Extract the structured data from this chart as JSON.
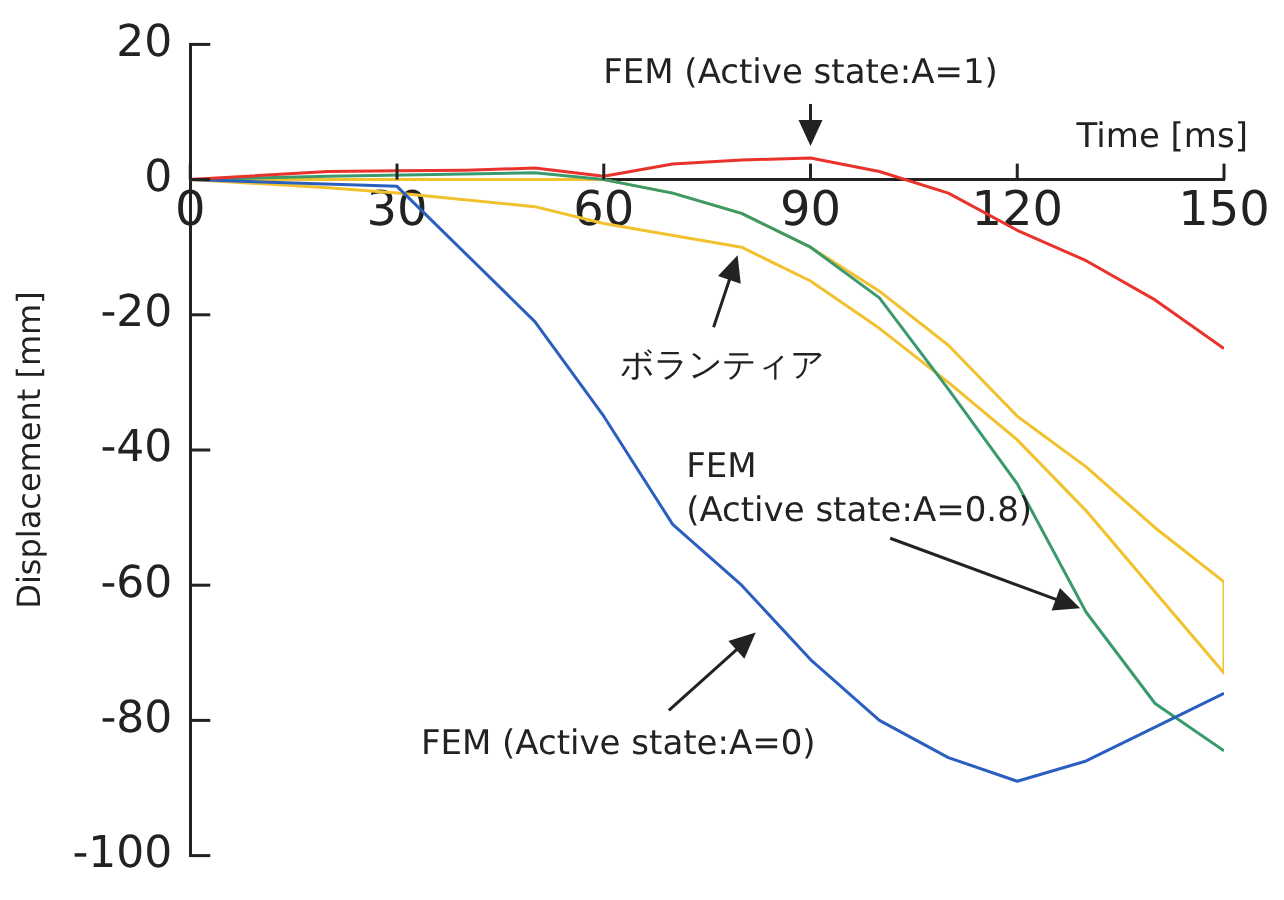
{
  "chart_data": {
    "type": "line",
    "xlabel": "Time [ms]",
    "ylabel": "Displacement [mm]",
    "xlim": [
      0,
      150
    ],
    "xticks": [
      0,
      30,
      60,
      90,
      120,
      150
    ],
    "ylim": [
      -100,
      20
    ],
    "yticks": [
      20,
      0,
      -20,
      -40,
      -60,
      -80,
      -100
    ],
    "grid": false,
    "legend": false,
    "marker": "none",
    "line_style": "solid",
    "series": [
      {
        "color": "#e8322a",
        "x": [
          0,
          20,
          30,
          40,
          50,
          60,
          70,
          80,
          90,
          100,
          110,
          120,
          130,
          140,
          150
        ],
        "values": [
          0,
          1.2,
          1.3,
          1.4,
          1.7,
          0.5,
          2.3,
          2.9,
          3.2,
          1.2,
          -2,
          -7.5,
          -12,
          -17.8,
          -25
        ]
      },
      {
        "color": "#2a5fbf",
        "x": [
          0,
          30,
          50,
          60,
          70,
          80,
          90,
          100,
          110,
          120,
          130,
          140,
          150
        ],
        "values": [
          0,
          -1,
          -21,
          -35,
          -51,
          -60,
          -71,
          -80,
          -85.5,
          -89,
          -86,
          -81,
          -76
        ]
      },
      {
        "color": "#3a9a6e",
        "x": [
          0,
          20,
          50,
          60,
          70,
          80,
          90,
          100,
          110,
          120,
          130,
          140,
          150
        ],
        "values": [
          0,
          0.5,
          1,
          0,
          -2,
          -5,
          -10,
          -17.5,
          -31,
          -45,
          -64,
          -77.5,
          -84.5
        ]
      },
      {
        "color": "#f2c12e",
        "x": [
          0,
          60,
          70,
          80,
          90,
          100,
          110,
          120,
          130,
          140,
          150,
          150
        ],
        "values": [
          0,
          0,
          -2,
          -5,
          -10,
          -16.5,
          -24.5,
          -35,
          -42.5,
          -51.5,
          -59.5,
          -73
        ]
      },
      {
        "color": "#f2c12e",
        "x": [
          0,
          20,
          30,
          50,
          60,
          80,
          90,
          100,
          110,
          120,
          130,
          140,
          150
        ],
        "values": [
          0,
          -1.2,
          -2,
          -4,
          -6.5,
          -10,
          -15,
          -22,
          -30,
          -38.5,
          -49,
          -61,
          -73
        ]
      }
    ],
    "annotations": [
      {
        "text": "FEM (Active state:A=1)",
        "x": 90,
        "y": 3.2
      },
      {
        "text": "ボランティア",
        "x": 80,
        "y": -10
      },
      {
        "text": "FEM\n(Active state:A=0.8)",
        "x": 130,
        "y": -64
      },
      "FEM (Active state:A=0)"
    ]
  }
}
